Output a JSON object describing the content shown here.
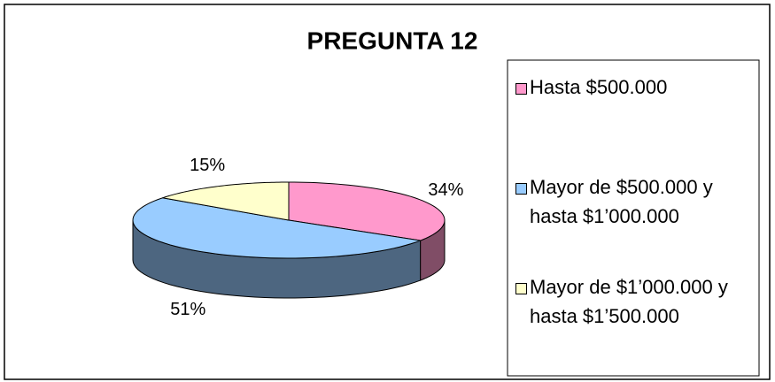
{
  "chart_data": {
    "type": "pie",
    "title": "PREGUNTA 12",
    "categories": [
      "Hasta $500.000",
      "Mayor de $500.000 y hasta $1’000.000",
      "Mayor de $1’000.000 y hasta $1’500.000"
    ],
    "values": [
      34,
      51,
      15
    ],
    "value_labels": [
      "34%",
      "51%",
      "15%"
    ],
    "colors": [
      "#ff99cc",
      "#99ccff",
      "#ffffcc"
    ],
    "legend": "right"
  }
}
